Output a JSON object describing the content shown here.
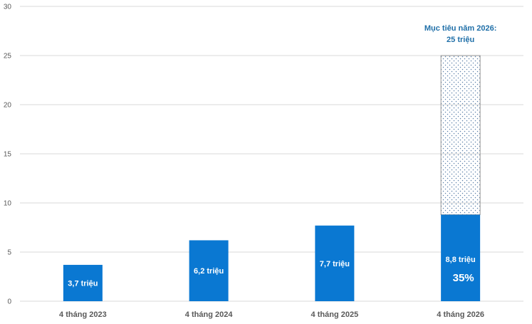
{
  "chart_data": {
    "type": "bar",
    "categories": [
      "4 tháng 2023",
      "4 tháng 2024",
      "4 tháng 2025",
      "4 tháng 2026"
    ],
    "values": [
      3.7,
      6.2,
      7.7,
      8.8
    ],
    "data_labels": [
      "3,7 triệu",
      "6,2 triệu",
      "7,7 triệu",
      "8,8 triệu"
    ],
    "target": {
      "value": 25,
      "label_line1": "Mục tiêu năm 2026:",
      "label_line2": "25 triệu",
      "progress_label": "35%"
    },
    "ylim": [
      0,
      30
    ],
    "yticks": [
      0,
      5,
      10,
      15,
      20,
      25,
      30
    ],
    "grid": true,
    "colors": {
      "bar": "#0a78d2",
      "grid": "#d9d9d9",
      "target_label": "#1f6fa8",
      "pattern_dot": "#5a7fa8"
    }
  }
}
